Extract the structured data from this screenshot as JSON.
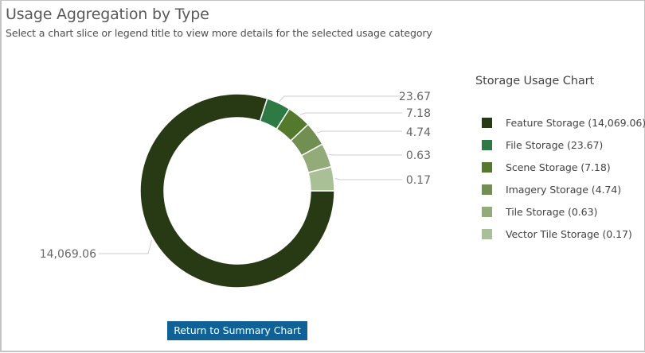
{
  "header": {
    "title": "Usage Aggregation by Type",
    "subtitle": "Select a chart slice or legend title to view more details for the selected usage category"
  },
  "legend": {
    "title": "Storage Usage Chart",
    "items": [
      {
        "label": "Feature Storage (14,069.06)",
        "color": "#283a14"
      },
      {
        "label": "File Storage (23.67)",
        "color": "#2e7a45"
      },
      {
        "label": "Scene Storage (7.18)",
        "color": "#527a2a"
      },
      {
        "label": "Imagery Storage (4.74)",
        "color": "#728f52"
      },
      {
        "label": "Tile Storage (0.63)",
        "color": "#93ab78"
      },
      {
        "label": "Vector Tile Storage (0.17)",
        "color": "#a9bf95"
      }
    ]
  },
  "slice_labels": [
    "14,069.06",
    "23.67",
    "7.18",
    "4.74",
    "0.63",
    "0.17"
  ],
  "button": {
    "label": "Return to Summary Chart",
    "color": "#0f6298"
  },
  "chart_data": {
    "type": "pie",
    "subtype": "donut",
    "title": "Storage Usage Chart",
    "categories": [
      "Feature Storage",
      "File Storage",
      "Scene Storage",
      "Imagery Storage",
      "Tile Storage",
      "Vector Tile Storage"
    ],
    "values": [
      14069.06,
      23.67,
      7.18,
      4.74,
      0.63,
      0.17
    ],
    "colors": [
      "#283a14",
      "#2e7a45",
      "#527a2a",
      "#728f52",
      "#93ab78",
      "#a9bf95"
    ],
    "legend_position": "right",
    "data_labels": [
      "14,069.06",
      "23.67",
      "7.18",
      "4.74",
      "0.63",
      "0.17"
    ]
  }
}
